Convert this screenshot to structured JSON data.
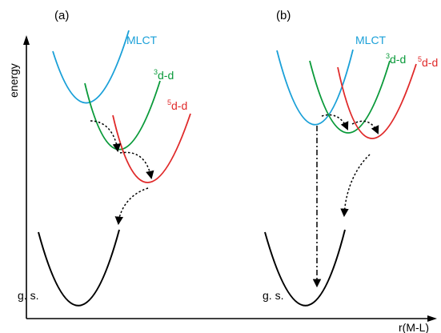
{
  "panels": [
    {
      "label": "(a)",
      "curves": {
        "mlct": "MLCT",
        "triplet": {
          "sup": "3",
          "text": "d-d"
        },
        "quintet": {
          "sup": "5",
          "text": "d-d"
        },
        "ground": "g. s."
      }
    },
    {
      "label": "(b)",
      "curves": {
        "mlct": "MLCT",
        "triplet": {
          "sup": "3",
          "text": "d-d"
        },
        "quintet": {
          "sup": "5",
          "text": "d-d"
        },
        "ground": "g. s."
      }
    }
  ],
  "axes": {
    "ylabel": "energy",
    "xlabel": "r(M-L)"
  },
  "colors": {
    "mlct": "#1aa0d8",
    "triplet": "#0a9a3a",
    "quintet": "#e02a2a",
    "ground": "#000000",
    "arrow": "#000000"
  }
}
